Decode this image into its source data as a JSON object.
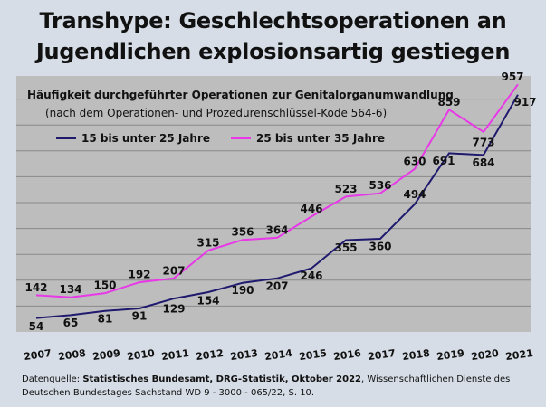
{
  "title_line1": "Transhype: Geschlechtsoperationen an",
  "title_line2": "Jugendlichen explosionsartig gestiegen",
  "footer": {
    "prefix": "Datenquelle: ",
    "bold": "Statistisches Bundesamt, DRG-Statistik, Oktober 2022",
    "rest": ", Wissenschaftlichen Dienste des Deutschen Bundestages Sachstand WD 9 - 3000 - 065/22, S. 10."
  },
  "chart_data": {
    "type": "line",
    "title": "Häufigkeit durchgeführter Operationen zur Genitalorganumwandlung",
    "subtitle_prefix": "(nach dem ",
    "subtitle_underlined": "Operationen- und Prozedurenschlüssel",
    "subtitle_suffix": "-Kode 564-6)",
    "x": [
      "2007",
      "2008",
      "2009",
      "2010",
      "2011",
      "2012",
      "2013",
      "2014",
      "2015",
      "2016",
      "2017",
      "2018",
      "2019",
      "2020",
      "2021"
    ],
    "ylim": [
      0,
      1000
    ],
    "grid": true,
    "legend_position": "top-left",
    "series": [
      {
        "name": "15 bis unter 25 Jahre",
        "color": "#1f1a6e",
        "values": [
          54,
          65,
          81,
          91,
          129,
          154,
          190,
          207,
          246,
          355,
          360,
          494,
          691,
          684,
          917
        ]
      },
      {
        "name": "25 bis unter 35 Jahre",
        "color": "#e838e8",
        "values": [
          142,
          134,
          150,
          192,
          207,
          315,
          356,
          364,
          446,
          523,
          536,
          630,
          859,
          773,
          957
        ]
      }
    ]
  }
}
